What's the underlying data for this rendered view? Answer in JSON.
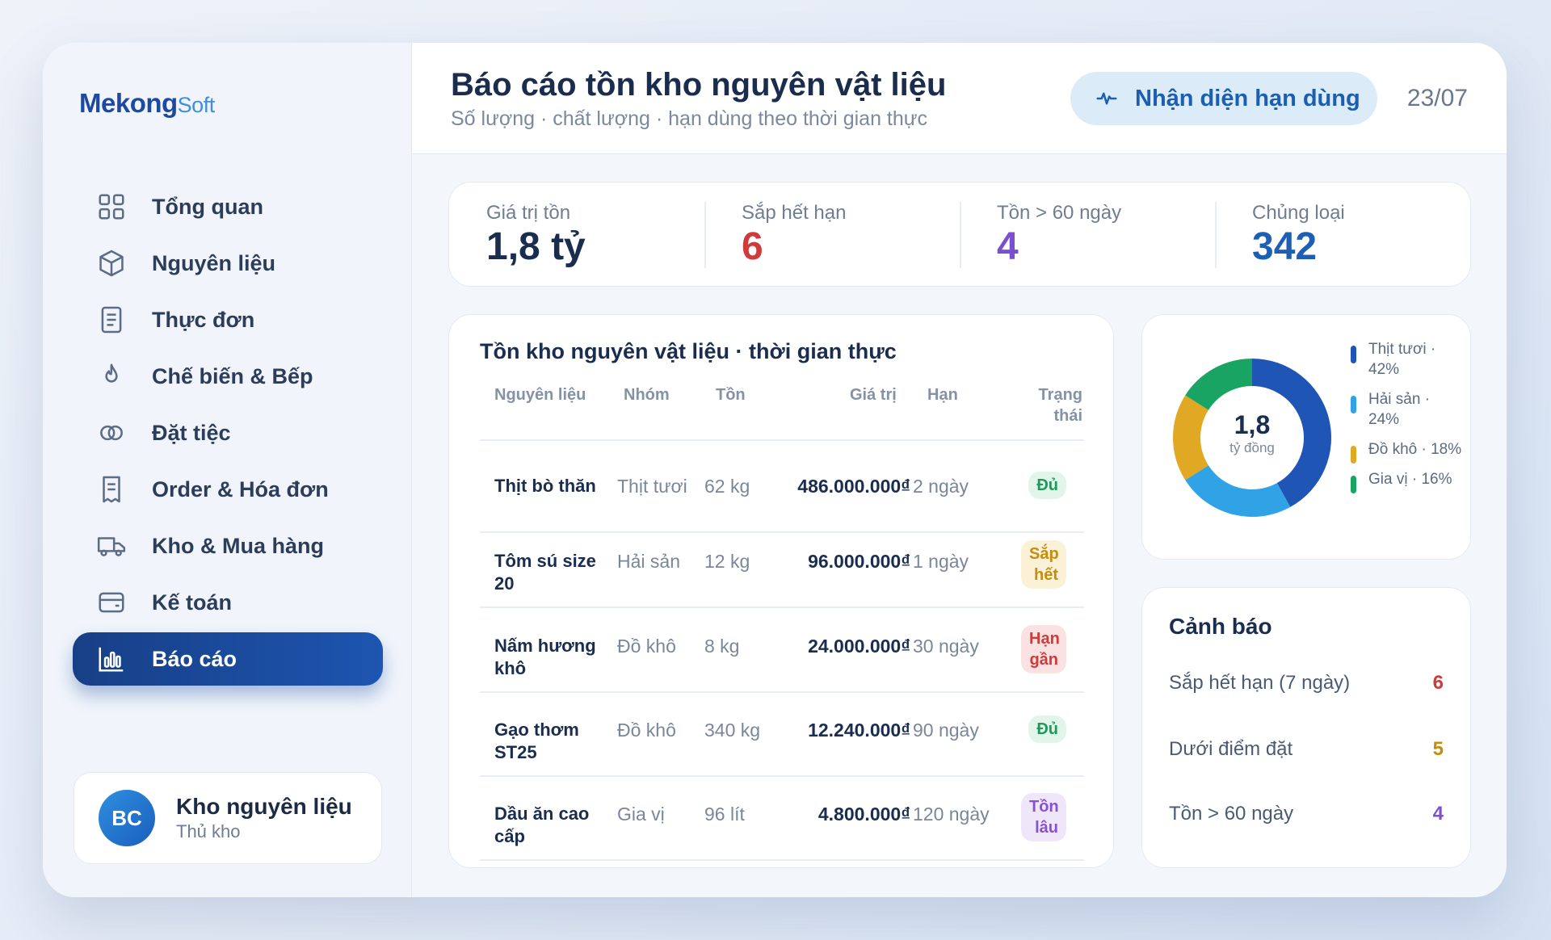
{
  "brand": {
    "part1": "Mekong",
    "part2": "Soft"
  },
  "sidebar": {
    "items": [
      {
        "label": "Tổng quan",
        "icon": "grid-icon"
      },
      {
        "label": "Nguyên liệu",
        "icon": "box-icon"
      },
      {
        "label": "Thực đơn",
        "icon": "document-icon"
      },
      {
        "label": "Chế biến & Bếp",
        "icon": "flame-icon"
      },
      {
        "label": "Đặt tiệc",
        "icon": "rings-icon"
      },
      {
        "label": "Order & Hóa đơn",
        "icon": "receipt-icon"
      },
      {
        "label": "Kho & Mua hàng",
        "icon": "truck-icon"
      },
      {
        "label": "Kế toán",
        "icon": "wallet-icon"
      },
      {
        "label": "Báo cáo",
        "icon": "bar-chart-icon",
        "active": true
      }
    ]
  },
  "user": {
    "initials": "BC",
    "name": "Kho nguyên liệu",
    "role": "Thủ kho"
  },
  "header": {
    "title": "Báo cáo tồn kho nguyên vật liệu",
    "subtitle": "Số lượng · chất lượng · hạn dùng theo thời gian thực",
    "action_label": "Nhận diện hạn dùng",
    "date": "23/07"
  },
  "kpis": [
    {
      "label": "Giá trị tồn",
      "value": "1,8 tỷ",
      "color": "#1b2d4f"
    },
    {
      "label": "Sắp hết hạn",
      "value": "6",
      "color": "#cf3b3b"
    },
    {
      "label": "Tồn > 60 ngày",
      "value": "4",
      "color": "#7a4fd0"
    },
    {
      "label": "Chủng loại",
      "value": "342",
      "color": "#1d5fb4"
    }
  ],
  "table": {
    "title": "Tồn kho nguyên vật liệu · thời gian thực",
    "headers": {
      "name": "Nguyên liệu",
      "group": "Nhóm",
      "stock": "Tồn",
      "value": "Giá trị",
      "expiry": "Hạn",
      "status": "Trạng thái"
    },
    "rows": [
      {
        "name": "Thịt bò thăn",
        "group": "Thịt tươi",
        "stock": "62 kg",
        "value": "486.000.000₫",
        "expiry": "2 ngày",
        "status": "Đủ",
        "status_type": "ok"
      },
      {
        "name": "Tôm sú size 20",
        "group": "Hải sản",
        "stock": "12 kg",
        "value": "96.000.000₫",
        "expiry": "1 ngày",
        "status": "Sắp hết",
        "status_type": "near"
      },
      {
        "name": "Nấm hương khô",
        "group": "Đồ khô",
        "stock": "8 kg",
        "value": "24.000.000₫",
        "expiry": "30 ngày",
        "status": "Hạn gần",
        "status_type": "exp"
      },
      {
        "name": "Gạo thơm ST25",
        "group": "Đồ khô",
        "stock": "340 kg",
        "value": "12.240.000₫",
        "expiry": "90 ngày",
        "status": "Đủ",
        "status_type": "ok"
      },
      {
        "name": "Dầu ăn cao cấp",
        "group": "Gia vị",
        "stock": "96 lít",
        "value": "4.800.000₫",
        "expiry": "120 ngày",
        "status": "Tồn lâu",
        "status_type": "old"
      }
    ]
  },
  "donut": {
    "center_value": "1,8",
    "center_unit": "tỷ đồng",
    "segments": [
      {
        "label": "Thịt tươi · 42%",
        "value": 42,
        "color": "#1f55b5"
      },
      {
        "label": "Hải sản · 24%",
        "value": 24,
        "color": "#2fa3e6"
      },
      {
        "label": "Đồ khô · 18%",
        "value": 18,
        "color": "#e0a823"
      },
      {
        "label": "Gia vị · 16%",
        "value": 16,
        "color": "#19a463"
      }
    ]
  },
  "alerts": {
    "title": "Cảnh báo",
    "items": [
      {
        "label": "Sắp hết hạn (7 ngày)",
        "count": "6",
        "color": "#cf3b3b"
      },
      {
        "label": "Dưới điểm đặt",
        "count": "5",
        "color": "#c78c0c"
      },
      {
        "label": "Tồn > 60 ngày",
        "count": "4",
        "color": "#7a4fd0"
      }
    ]
  }
}
